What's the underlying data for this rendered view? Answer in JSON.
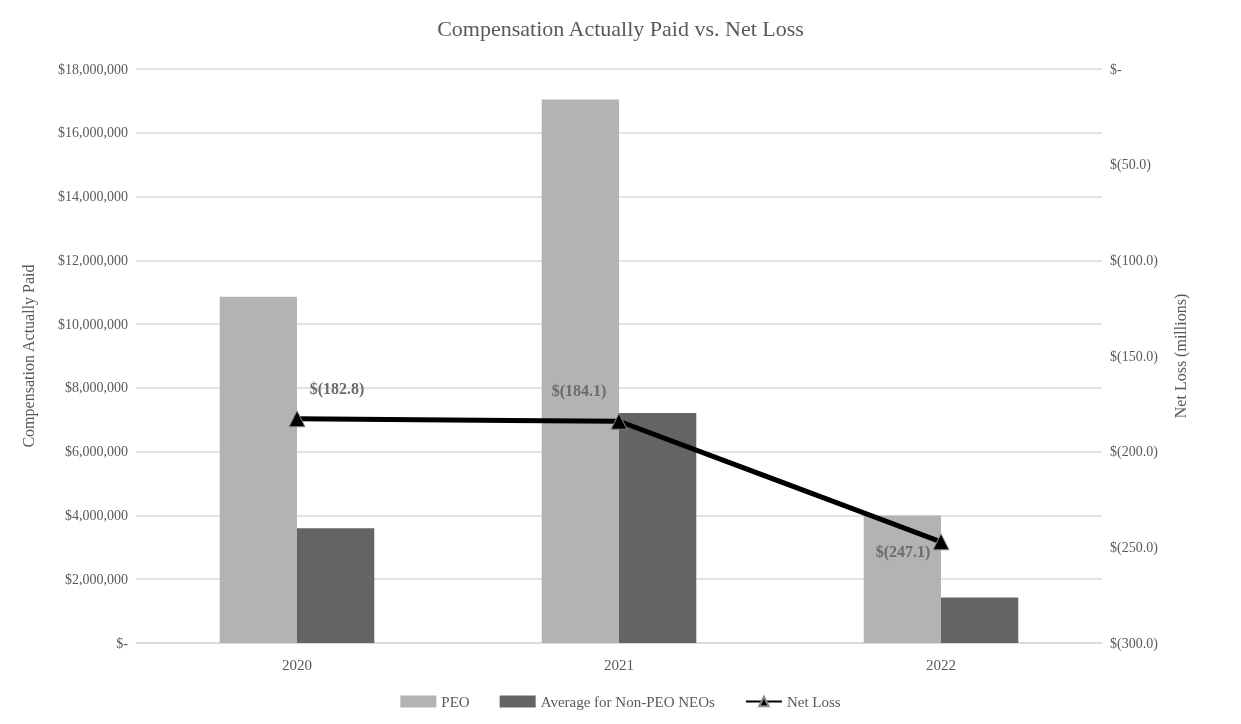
{
  "chart_data": {
    "type": "bar",
    "title": "Compensation Actually Paid vs. Net Loss",
    "ylabel": "Compensation Actually Paid",
    "y2label": "Net Loss (millions)",
    "categories": [
      "2020",
      "2021",
      "2022"
    ],
    "series": [
      {
        "name": "PEO",
        "color": "#b3b3b3",
        "values": [
          10860000,
          17040000,
          4000000
        ]
      },
      {
        "name": "Average for Non-PEO NEOs",
        "color": "#646464",
        "values": [
          3600000,
          7210000,
          1430000
        ]
      },
      {
        "name": "Net Loss",
        "type": "line",
        "axis": "y2",
        "color": "#000000",
        "marker": "triangle",
        "values": [
          -182.8,
          -184.1,
          -247.1
        ],
        "value_labels": [
          "$(182.8)",
          "$(184.1)",
          "$(247.1)"
        ]
      }
    ],
    "ylim": [
      0,
      18000000
    ],
    "yticks": [
      {
        "value": 0,
        "label": "$-"
      },
      {
        "value": 2000000,
        "label": "$2,000,000"
      },
      {
        "value": 4000000,
        "label": "$4,000,000"
      },
      {
        "value": 6000000,
        "label": "$6,000,000"
      },
      {
        "value": 8000000,
        "label": "$8,000,000"
      },
      {
        "value": 10000000,
        "label": "$10,000,000"
      },
      {
        "value": 12000000,
        "label": "$12,000,000"
      },
      {
        "value": 14000000,
        "label": "$14,000,000"
      },
      {
        "value": 16000000,
        "label": "$16,000,000"
      },
      {
        "value": 18000000,
        "label": "$18,000,000"
      }
    ],
    "y2lim": [
      -300,
      0
    ],
    "y2ticks": [
      {
        "value": -300,
        "label": "$(300.0)"
      },
      {
        "value": -250,
        "label": "$(250.0)"
      },
      {
        "value": -200,
        "label": "$(200.0)"
      },
      {
        "value": -150,
        "label": "$(150.0)"
      },
      {
        "value": -100,
        "label": "$(100.0)"
      },
      {
        "value": -50,
        "label": "$(50.0)"
      },
      {
        "value": 0,
        "label": "$-"
      }
    ],
    "grid": "y",
    "legend": "bottom"
  }
}
